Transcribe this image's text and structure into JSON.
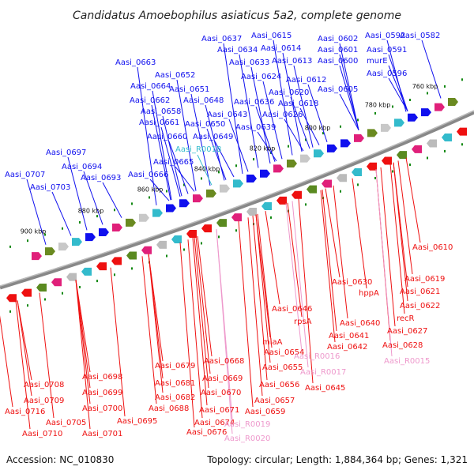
{
  "title": "Candidatus Amoebophilus asiaticus 5a2, complete genome",
  "footer": {
    "accession": "Accession: NC_010830",
    "summary": "Topology: circular; Length: 1,884,364 bp; Genes: 1,321"
  },
  "colors": {
    "forward": "#1010ee",
    "reverse": "#ee1010",
    "rna": "#33bbcc",
    "rna_reverse": "#ee99cc",
    "backbone": "#888888",
    "tick": "#118811"
  },
  "ticks": [
    "760 kbp",
    "780 kbp",
    "800 kbp",
    "820 kbp",
    "840 kbp",
    "860 kbp",
    "880 kbp",
    "900 kbp"
  ],
  "forward_labels": [
    "Aasi_0582",
    "Aasi_0592",
    "Aasi_0591",
    "murE",
    "Aasi_0596",
    "Aasi_0602",
    "Aasi_0601",
    "Aasi_0600",
    "Aasi_0605",
    "Aasi_0615",
    "Aasi_0614",
    "Aasi_0613",
    "Aasi_0612",
    "Aasi_0620",
    "Aasi_0618",
    "Aasi_0626",
    "Aasi_0637",
    "Aasi_0634",
    "Aasi_0633",
    "Aasi_0624",
    "Aasi_0636",
    "Aasi_0643",
    "Aasi_0639",
    "Aasi_0652",
    "Aasi_0651",
    "Aasi_0648",
    "Aasi_0650",
    "Aasi_0649",
    "Aasi_0663",
    "Aasi_0664",
    "Aasi_0662",
    "Aasi_0658",
    "Aasi_0661",
    "Aasi_0660",
    "Aasi_0665",
    "Aasi_0666",
    "Aasi_0697",
    "Aasi_0694",
    "Aasi_0693",
    "Aasi_0707",
    "Aasi_0703"
  ],
  "forward_rna_labels": [
    "Aasi_R0018"
  ],
  "reverse_labels": [
    "Aasi_0610",
    "Aasi_0619",
    "Aasi_0630",
    "Aasi_0621",
    "hppA",
    "Aasi_0622",
    "recR",
    "Aasi_0627",
    "Aasi_0628",
    "Aasi_0646",
    "rpsA",
    "Aasi_0640",
    "Aasi_0641",
    "Aasi_0642",
    "miaA",
    "Aasi_0654",
    "Aasi_0645",
    "Aasi_0655",
    "Aasi_0656",
    "Aasi_0657",
    "Aasi_0659",
    "Aasi_0668",
    "Aasi_0669",
    "Aasi_0670",
    "Aasi_0671",
    "Aasi_0674",
    "Aasi_0676",
    "Aasi_0679",
    "Aasi_0681",
    "Aasi_0682",
    "Aasi_0688",
    "Aasi_0698",
    "Aasi_0699",
    "Aasi_0700",
    "Aasi_0695",
    "Aasi_0701",
    "Aasi_0708",
    "Aasi_0709",
    "Aasi_0716",
    "Aasi_0705",
    "Aasi_0710"
  ],
  "reverse_rna_labels": [
    "Aasi_R0015",
    "Aasi_R0016",
    "Aasi_R0017",
    "Aasi_R0019",
    "Aasi_R0020"
  ]
}
